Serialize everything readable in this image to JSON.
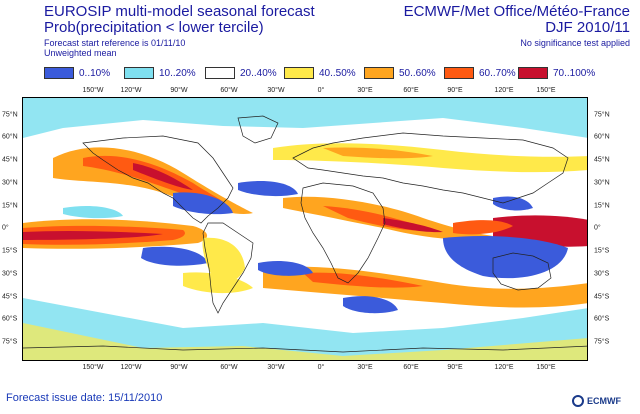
{
  "header": {
    "title_line1": "EUROSIP multi-model seasonal forecast",
    "title_line2": "Prob(precipitation < lower tercile)",
    "subtitle_line1": "Forecast start reference is 01/11/10",
    "subtitle_line2": "Unweighted mean",
    "right_line1": "ECMWF/Met Office/Météo-France",
    "right_line2": "DJF 2010/11",
    "right_line3": "No significance test applied"
  },
  "legend": {
    "items": [
      {
        "label": "0..10%",
        "color": "#3b5bdb"
      },
      {
        "label": "10..20%",
        "color": "#7fe0f0"
      },
      {
        "label": "20..40%",
        "color": "#ffffff"
      },
      {
        "label": "40..50%",
        "color": "#ffe94a"
      },
      {
        "label": "50..60%",
        "color": "#ffa51f"
      },
      {
        "label": "60..70%",
        "color": "#ff5a12"
      },
      {
        "label": "70..100%",
        "color": "#c8102e"
      }
    ]
  },
  "axes": {
    "lon_labels": [
      "150°W",
      "120°W",
      "90°W",
      "60°W",
      "30°W",
      "0°",
      "30°E",
      "60°E",
      "90°E",
      "120°E",
      "150°E"
    ],
    "lat_left": [
      "75°N",
      "60°N",
      "45°N",
      "30°N",
      "15°N",
      "0°",
      "15°S",
      "30°S",
      "45°S",
      "60°S",
      "75°S"
    ],
    "lat_right": [
      "75°N",
      "60°N",
      "45°N",
      "30°N",
      "15°N",
      "0°",
      "15°S",
      "30°S",
      "45°S",
      "60°S",
      "75°S"
    ]
  },
  "footer": {
    "issue_date": "Forecast issue date: 15/11/2010",
    "logo_text": "ECMWF"
  }
}
